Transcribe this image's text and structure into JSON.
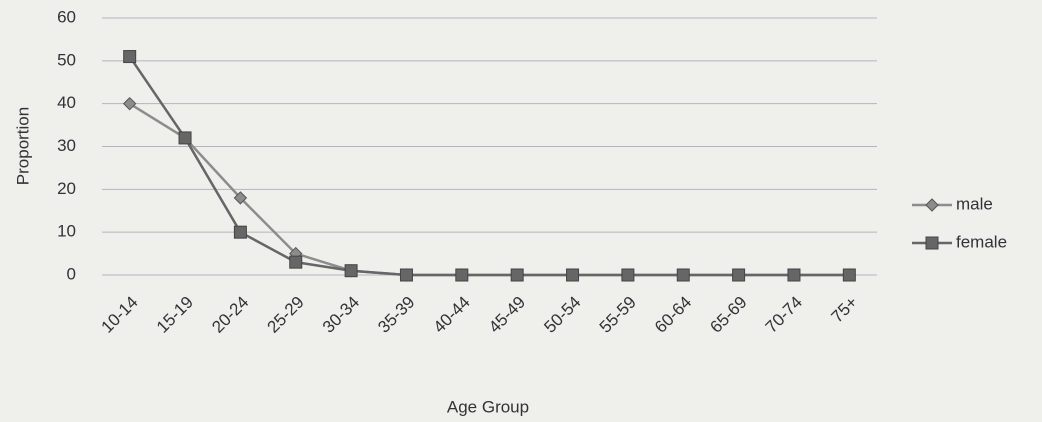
{
  "chart_data": {
    "type": "line",
    "xlabel": "Age Group",
    "ylabel": "Proportion",
    "categories": [
      "10-14",
      "15-19",
      "20-24",
      "25-29",
      "30-34",
      "35-39",
      "40-44",
      "45-49",
      "50-54",
      "55-59",
      "60-64",
      "65-69",
      "70-74",
      "75+"
    ],
    "series": [
      {
        "name": "male",
        "color": "#8c8c8c",
        "marker": "diamond",
        "values": [
          40,
          32,
          18,
          5,
          1,
          0,
          0,
          0,
          0,
          0,
          0,
          0,
          0,
          0
        ]
      },
      {
        "name": "female",
        "color": "#666666",
        "marker": "square",
        "values": [
          51,
          32,
          10,
          3,
          1,
          0,
          0,
          0,
          0,
          0,
          0,
          0,
          0,
          0
        ]
      }
    ],
    "ylim": [
      0,
      60
    ],
    "yticks": [
      0,
      10,
      20,
      30,
      40,
      50,
      60
    ],
    "grid": true,
    "legend": "right"
  }
}
